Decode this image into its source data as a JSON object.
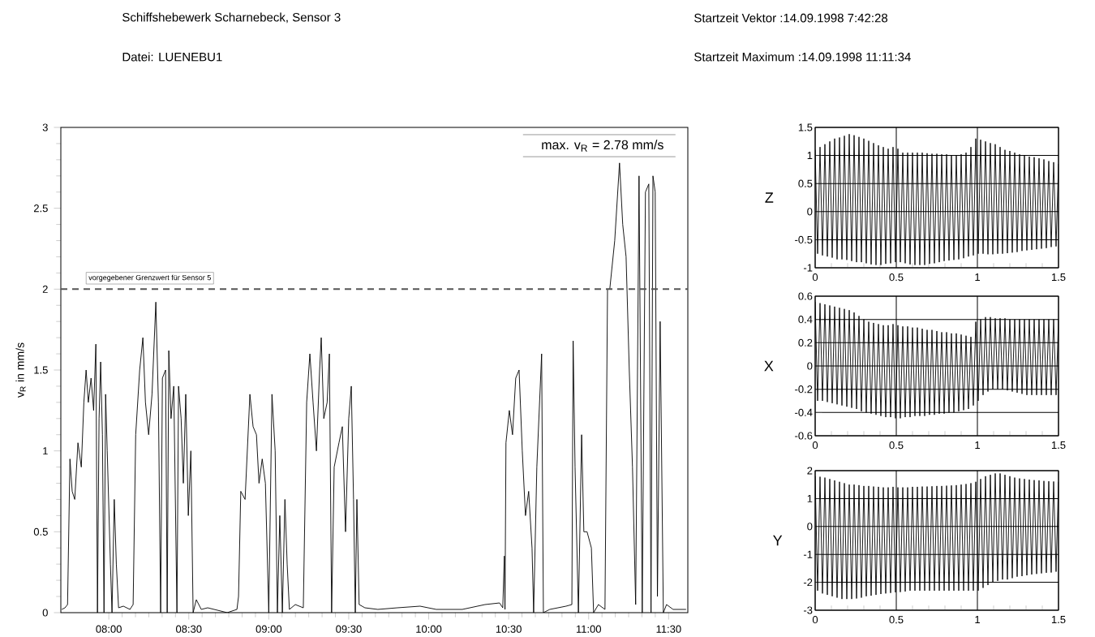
{
  "chart_data": [
    {
      "type": "line",
      "title": "Schiffshebewerk Scharnebeck, Sensor 3",
      "subtitle": "Datei: LUENEBU1",
      "annotations": [
        "max. v$_{R}$ = 2.78 mm/s",
        "Startzeit Vektor :14.09.1998 7:42:28",
        "Startzeit Maximum :14.09.1998 11:11:34"
      ],
      "ylabel": "v$_{R}$ in mm/s",
      "color": "#000000",
      "xlim": [
        7.7,
        11.62
      ],
      "ylim": [
        0,
        3
      ],
      "xticks": [
        {
          "value": 8,
          "label": "08:00"
        },
        {
          "value": 8.5,
          "label": "08:30"
        },
        {
          "value": 9,
          "label": "09:00"
        },
        {
          "value": 9.5,
          "label": "09:30"
        },
        {
          "value": 10,
          "label": "10:00"
        },
        {
          "value": 10.5,
          "label": "10:30"
        },
        {
          "value": 11,
          "label": "11:00"
        },
        {
          "value": 11.5,
          "label": "11:30"
        }
      ],
      "yticks": [
        0,
        0.5,
        1,
        1.5,
        2,
        2.5,
        3
      ],
      "ref_lines": [
        {
          "axis": "y",
          "value": 2,
          "label": "vorgegebener Grenzwert für Sensor 5",
          "color": "#555555",
          "line_style": "dashed"
        }
      ],
      "x": [
        7.706,
        7.726,
        7.742,
        7.757,
        7.771,
        7.787,
        7.807,
        7.828,
        7.844,
        7.858,
        7.872,
        7.889,
        7.905,
        7.919,
        7.929,
        7.939,
        7.949,
        7.96,
        7.97,
        7.98,
        7.99,
        8.01,
        8.02,
        8.034,
        8.047,
        8.061,
        8.091,
        8.132,
        8.152,
        8.168,
        8.193,
        8.213,
        8.229,
        8.249,
        8.27,
        8.294,
        8.31,
        8.324,
        8.335,
        8.355,
        8.365,
        8.375,
        8.389,
        8.406,
        8.426,
        8.436,
        8.452,
        8.466,
        8.481,
        8.497,
        8.513,
        8.527,
        8.547,
        8.578,
        8.618,
        8.74,
        8.801,
        8.811,
        8.825,
        8.852,
        8.882,
        8.902,
        8.923,
        8.939,
        8.959,
        8.979,
        9.0,
        9.02,
        9.04,
        9.054,
        9.069,
        9.085,
        9.101,
        9.115,
        9.129,
        9.166,
        9.216,
        9.237,
        9.257,
        9.277,
        9.298,
        9.318,
        9.328,
        9.344,
        9.365,
        9.379,
        9.393,
        9.409,
        9.439,
        9.46,
        9.48,
        9.5,
        9.516,
        9.53,
        9.541,
        9.551,
        9.565,
        9.601,
        9.682,
        9.804,
        9.946,
        10.047,
        10.21,
        10.352,
        10.443,
        10.463,
        10.473,
        10.477,
        10.483,
        10.504,
        10.524,
        10.544,
        10.565,
        10.585,
        10.605,
        10.625,
        10.646,
        10.656,
        10.676,
        10.706,
        10.717,
        10.757,
        10.859,
        10.895,
        10.903,
        10.915,
        10.936,
        10.956,
        10.97,
        10.99,
        11.017,
        11.031,
        11.061,
        11.102,
        11.118,
        11.132,
        11.163,
        11.193,
        11.213,
        11.234,
        11.254,
        11.274,
        11.294,
        11.315,
        11.335,
        11.355,
        11.376,
        11.39,
        11.402,
        11.416,
        11.43,
        11.447,
        11.467,
        11.487,
        11.528,
        11.609
      ],
      "values": [
        0.02,
        0.03,
        0.05,
        0.95,
        0.75,
        0.7,
        1.05,
        0.9,
        1.3,
        1.5,
        1.3,
        1.45,
        1.25,
        1.66,
        0,
        1.2,
        1.55,
        1.1,
        0,
        1.35,
        1.0,
        0.3,
        0,
        0.7,
        0.3,
        0.03,
        0.04,
        0.02,
        0.05,
        1.1,
        1.5,
        1.7,
        1.3,
        1.1,
        1.35,
        1.92,
        1.3,
        0,
        1.45,
        1.5,
        0,
        1.62,
        1.2,
        1.4,
        0,
        1.4,
        1.2,
        0.8,
        1.35,
        0.6,
        1.0,
        0,
        0.08,
        0.02,
        0.03,
        0,
        0.02,
        0.1,
        0.75,
        0.7,
        1.35,
        1.15,
        1.1,
        0.8,
        0.95,
        0.8,
        0,
        1.35,
        1.0,
        0,
        0.6,
        0,
        0.7,
        0.3,
        0.02,
        0.05,
        0.03,
        1.3,
        1.6,
        1.3,
        1.0,
        1.5,
        1.7,
        1.2,
        1.3,
        1.6,
        0,
        0.9,
        1.05,
        1.15,
        0.5,
        1.2,
        1.4,
        0.7,
        0,
        0.7,
        0.05,
        0.03,
        0.02,
        0.03,
        0.04,
        0.02,
        0.02,
        0.05,
        0.06,
        0.03,
        0.35,
        0.02,
        1.05,
        1.25,
        1.1,
        1.45,
        1.5,
        1.0,
        0.6,
        0.75,
        0.4,
        0,
        0.9,
        1.6,
        0,
        0.02,
        0.04,
        0.05,
        1.68,
        0.9,
        0,
        1.1,
        0.5,
        0.5,
        0.4,
        0,
        0.05,
        0.02,
        2.0,
        2.0,
        2.3,
        2.78,
        2.4,
        2.2,
        1.5,
        0.9,
        0.05,
        2.7,
        0,
        2.6,
        2.65,
        0,
        2.7,
        2.6,
        0.1,
        1.8,
        0,
        0.05,
        0.02,
        0.02
      ]
    },
    {
      "type": "line",
      "ylabel": "Z",
      "color": "#000000",
      "grid": true,
      "xlim": [
        0,
        1.5
      ],
      "ylim": [
        -1,
        1.5
      ],
      "xticks": [
        0,
        0.5,
        1,
        1.5
      ],
      "yticks": [
        -1,
        -0.5,
        0,
        0.5,
        1,
        1.5
      ],
      "x": [
        0,
        0.015,
        0.03,
        0.045,
        0.06,
        0.075,
        0.09,
        0.105,
        0.12,
        0.135,
        0.15,
        0.165,
        0.18,
        0.195,
        0.21,
        0.225,
        0.24,
        0.255,
        0.27,
        0.285,
        0.3,
        0.315,
        0.33,
        0.345,
        0.36,
        0.375,
        0.39,
        0.405,
        0.42,
        0.435,
        0.45,
        0.465,
        0.48,
        0.495,
        0.51,
        0.525,
        0.54,
        0.555,
        0.57,
        0.585,
        0.6,
        0.615,
        0.63,
        0.645,
        0.66,
        0.675,
        0.69,
        0.705,
        0.72,
        0.735,
        0.75,
        0.765,
        0.78,
        0.795,
        0.81,
        0.825,
        0.84,
        0.855,
        0.87,
        0.885,
        0.9,
        0.915,
        0.93,
        0.945,
        0.96,
        0.975,
        0.99,
        1.005,
        1.02,
        1.035,
        1.05,
        1.065,
        1.08,
        1.095,
        1.11,
        1.125,
        1.14,
        1.155,
        1.17,
        1.185,
        1.2,
        1.215,
        1.23,
        1.245,
        1.26,
        1.275,
        1.29,
        1.305,
        1.32,
        1.335,
        1.35,
        1.365,
        1.38,
        1.395,
        1.41,
        1.425,
        1.44,
        1.455,
        1.47,
        1.485,
        1.5
      ],
      "values": [
        1.1,
        -0.75,
        1.15,
        -0.78,
        1.2,
        -0.8,
        1.25,
        -0.82,
        1.3,
        -0.85,
        1.32,
        -0.85,
        1.35,
        -0.86,
        1.38,
        -0.88,
        1.36,
        -0.9,
        1.33,
        -0.9,
        1.3,
        -0.92,
        1.26,
        -0.94,
        1.22,
        -0.95,
        1.18,
        -0.95,
        1.15,
        -0.93,
        1.12,
        -0.92,
        1.15,
        -0.9,
        1.12,
        -0.9,
        1.05,
        -0.92,
        1.05,
        -0.94,
        1.05,
        -0.95,
        1.05,
        -0.95,
        1.05,
        -0.95,
        1.04,
        -0.93,
        1.03,
        -0.92,
        1.03,
        -0.9,
        1.02,
        -0.88,
        1.02,
        -0.87,
        1.0,
        -0.86,
        1.0,
        -0.85,
        1.02,
        -0.83,
        1.05,
        -0.8,
        1.15,
        -0.78,
        1.3,
        -0.75,
        1.28,
        -0.75,
        1.25,
        -0.76,
        1.22,
        -0.76,
        1.2,
        -0.75,
        1.15,
        -0.75,
        1.1,
        -0.74,
        1.08,
        -0.73,
        1.05,
        -0.72,
        1.02,
        -0.7,
        1.0,
        -0.69,
        0.98,
        -0.68,
        0.97,
        -0.67,
        0.95,
        -0.66,
        0.93,
        -0.65,
        0.9,
        -0.63,
        0.88,
        -0.62,
        0.85
      ]
    },
    {
      "type": "line",
      "ylabel": "X",
      "color": "#000000",
      "grid": true,
      "xlim": [
        0,
        1.5
      ],
      "ylim": [
        -0.6,
        0.6
      ],
      "xticks": [
        0,
        0.5,
        1,
        1.5
      ],
      "yticks": [
        -0.6,
        -0.4,
        -0.2,
        0,
        0.2,
        0.4,
        0.6
      ],
      "x": [
        0,
        0.015,
        0.03,
        0.045,
        0.06,
        0.075,
        0.09,
        0.105,
        0.12,
        0.135,
        0.15,
        0.165,
        0.18,
        0.195,
        0.21,
        0.225,
        0.24,
        0.255,
        0.27,
        0.285,
        0.3,
        0.315,
        0.33,
        0.345,
        0.36,
        0.375,
        0.39,
        0.405,
        0.42,
        0.435,
        0.45,
        0.465,
        0.48,
        0.495,
        0.51,
        0.525,
        0.54,
        0.555,
        0.57,
        0.585,
        0.6,
        0.615,
        0.63,
        0.645,
        0.66,
        0.675,
        0.69,
        0.705,
        0.72,
        0.735,
        0.75,
        0.765,
        0.78,
        0.795,
        0.81,
        0.825,
        0.84,
        0.855,
        0.87,
        0.885,
        0.9,
        0.915,
        0.93,
        0.945,
        0.96,
        0.975,
        0.99,
        1.005,
        1.02,
        1.035,
        1.05,
        1.065,
        1.08,
        1.095,
        1.11,
        1.125,
        1.14,
        1.155,
        1.17,
        1.185,
        1.2,
        1.215,
        1.23,
        1.245,
        1.26,
        1.275,
        1.29,
        1.305,
        1.32,
        1.335,
        1.35,
        1.365,
        1.38,
        1.395,
        1.41,
        1.425,
        1.44,
        1.455,
        1.47,
        1.485,
        1.5
      ],
      "values": [
        0.55,
        -0.3,
        0.54,
        -0.3,
        0.53,
        -0.31,
        0.52,
        -0.32,
        0.51,
        -0.33,
        0.5,
        -0.34,
        0.49,
        -0.35,
        0.48,
        -0.36,
        0.46,
        -0.37,
        0.43,
        -0.39,
        0.4,
        -0.4,
        0.38,
        -0.41,
        0.37,
        -0.42,
        0.36,
        -0.43,
        0.35,
        -0.44,
        0.35,
        -0.44,
        0.36,
        -0.45,
        0.35,
        -0.45,
        0.34,
        -0.44,
        0.34,
        -0.44,
        0.33,
        -0.43,
        0.33,
        -0.43,
        0.32,
        -0.43,
        0.31,
        -0.42,
        0.31,
        -0.42,
        0.3,
        -0.41,
        0.29,
        -0.41,
        0.29,
        -0.4,
        0.28,
        -0.4,
        0.28,
        -0.39,
        0.27,
        -0.38,
        0.26,
        -0.37,
        0.25,
        -0.34,
        0.38,
        -0.3,
        0.4,
        -0.25,
        0.42,
        -0.22,
        0.42,
        -0.2,
        0.41,
        -0.2,
        0.41,
        -0.2,
        0.41,
        -0.21,
        0.4,
        -0.22,
        0.4,
        -0.23,
        0.4,
        -0.24,
        0.4,
        -0.25,
        0.4,
        -0.25,
        0.4,
        -0.25,
        0.4,
        -0.25,
        0.4,
        -0.25,
        0.4,
        -0.25,
        0.4,
        -0.25,
        0.4
      ]
    },
    {
      "type": "line",
      "ylabel": "Y",
      "color": "#000000",
      "grid": true,
      "xlim": [
        0,
        1.5
      ],
      "ylim": [
        -3,
        2
      ],
      "xticks": [
        0,
        0.5,
        1,
        1.5
      ],
      "yticks": [
        -3,
        -2,
        -1,
        0,
        1,
        2
      ],
      "x": [
        0,
        0.015,
        0.03,
        0.045,
        0.06,
        0.075,
        0.09,
        0.105,
        0.12,
        0.135,
        0.15,
        0.165,
        0.18,
        0.195,
        0.21,
        0.225,
        0.24,
        0.255,
        0.27,
        0.285,
        0.3,
        0.315,
        0.33,
        0.345,
        0.36,
        0.375,
        0.39,
        0.405,
        0.42,
        0.435,
        0.45,
        0.465,
        0.48,
        0.495,
        0.51,
        0.525,
        0.54,
        0.555,
        0.57,
        0.585,
        0.6,
        0.615,
        0.63,
        0.645,
        0.66,
        0.675,
        0.69,
        0.705,
        0.72,
        0.735,
        0.75,
        0.765,
        0.78,
        0.795,
        0.81,
        0.825,
        0.84,
        0.855,
        0.87,
        0.885,
        0.9,
        0.915,
        0.93,
        0.945,
        0.96,
        0.975,
        0.99,
        1.005,
        1.02,
        1.035,
        1.05,
        1.065,
        1.08,
        1.095,
        1.11,
        1.125,
        1.14,
        1.155,
        1.17,
        1.185,
        1.2,
        1.215,
        1.23,
        1.245,
        1.26,
        1.275,
        1.29,
        1.305,
        1.32,
        1.335,
        1.35,
        1.365,
        1.38,
        1.395,
        1.41,
        1.425,
        1.44,
        1.455,
        1.47,
        1.485,
        1.5
      ],
      "values": [
        1.8,
        -2.3,
        1.78,
        -2.4,
        1.75,
        -2.45,
        1.7,
        -2.5,
        1.65,
        -2.55,
        1.6,
        -2.6,
        1.55,
        -2.6,
        1.5,
        -2.6,
        1.5,
        -2.58,
        1.48,
        -2.55,
        1.45,
        -2.5,
        1.45,
        -2.48,
        1.43,
        -2.45,
        1.42,
        -2.42,
        1.4,
        -2.4,
        1.4,
        -2.38,
        1.42,
        -2.36,
        1.4,
        -2.35,
        1.4,
        -2.33,
        1.4,
        -2.3,
        1.42,
        -2.3,
        1.42,
        -2.3,
        1.43,
        -2.3,
        1.43,
        -2.3,
        1.44,
        -2.3,
        1.45,
        -2.3,
        1.45,
        -2.3,
        1.46,
        -2.3,
        1.47,
        -2.3,
        1.48,
        -2.3,
        1.5,
        -2.3,
        1.52,
        -2.3,
        1.55,
        -2.3,
        1.6,
        -2.3,
        1.7,
        -2.2,
        1.8,
        -2.1,
        1.85,
        -2.0,
        1.9,
        -1.95,
        1.9,
        -1.9,
        1.85,
        -1.9,
        1.8,
        -1.85,
        1.75,
        -1.8,
        1.72,
        -1.78,
        1.7,
        -1.75,
        1.68,
        -1.72,
        1.66,
        -1.7,
        1.65,
        -1.68,
        1.63,
        -1.66,
        1.62,
        -1.65,
        1.61,
        -1.62,
        1.6
      ]
    }
  ]
}
